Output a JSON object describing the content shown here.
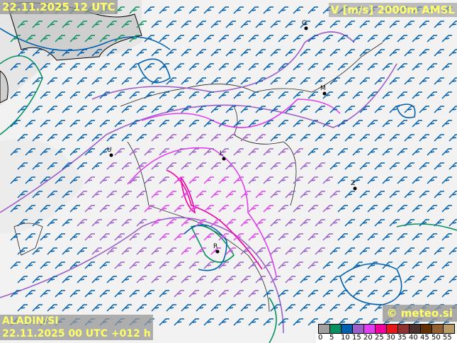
{
  "header": {
    "valid_time": "22.11.2025 12 UTC",
    "field": "V [m/s] 2000m AMSL"
  },
  "footer": {
    "model": "ALADIN/SI",
    "run": "22.11.2025 00 UTC +012 h",
    "copyright": "© meteo.si"
  },
  "legend": {
    "ticks": [
      "0",
      "5",
      "10",
      "15",
      "20",
      "25",
      "30",
      "35",
      "40",
      "45",
      "50",
      "55"
    ],
    "colors": [
      "#a0a0a0",
      "#089060",
      "#0060b0",
      "#9a60c8",
      "#e040f0",
      "#f000a0",
      "#e81818",
      "#903030",
      "#4a3030",
      "#603000",
      "#906030",
      "#b89c68"
    ]
  },
  "cities": [
    {
      "label": "G"
    },
    {
      "label": "M"
    },
    {
      "label": "L"
    },
    {
      "label": "Z"
    },
    {
      "label": "R"
    },
    {
      "label": "U"
    }
  ],
  "icons": {
    "barb": "wind-barb-icon",
    "city": "city-dot-icon"
  }
}
